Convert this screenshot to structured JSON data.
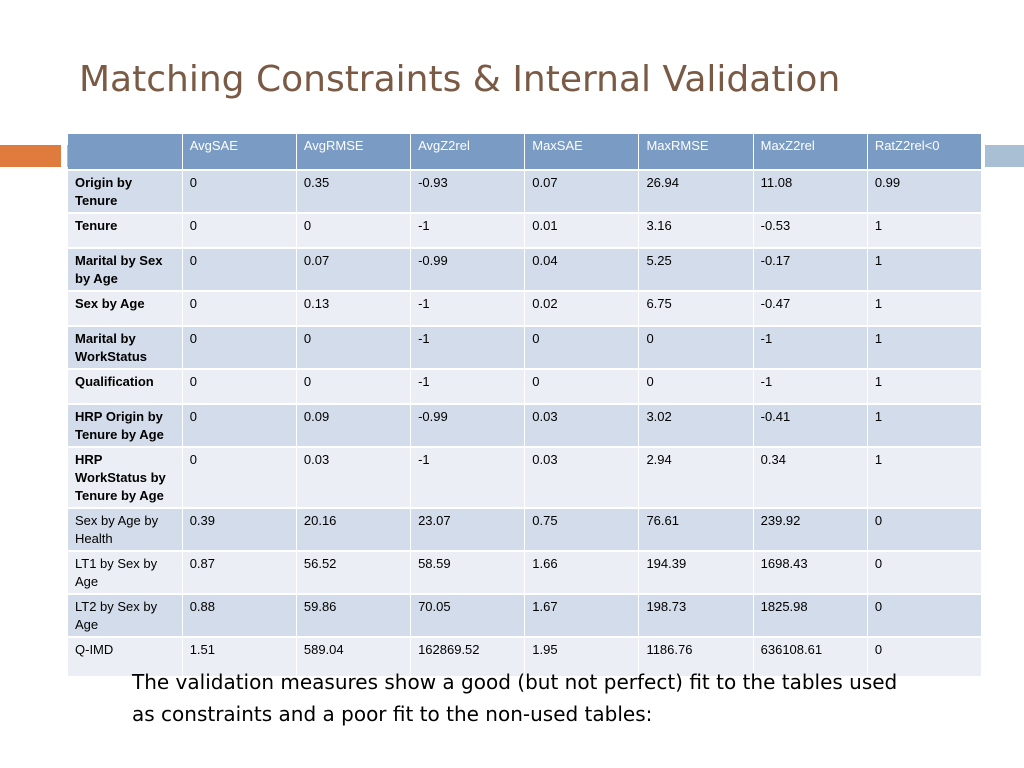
{
  "slide": {
    "title": "Matching Constraints & Internal Validation",
    "footnote": "The validation measures show a good (but not perfect) fit to the tables used as constraints and a poor fit to the non-used tables:"
  },
  "colors": {
    "title": "#7a5a44",
    "accent_orange": "#e07b3e",
    "accent_blue": "#a9bfd3",
    "header_bg": "#7a9bc4",
    "row_odd": "#d3dcea",
    "row_even": "#ebeff5"
  },
  "table": {
    "headers": [
      "",
      "AvgSAE",
      "AvgRMSE",
      "AvgZ2rel",
      "MaxSAE",
      "MaxRMSE",
      "MaxZ2rel",
      "RatZ2rel<0"
    ],
    "rows": [
      {
        "label": "Origin by Tenure",
        "bold": true,
        "cells": [
          "0",
          "0.35",
          "-0.93",
          "0.07",
          "26.94",
          "11.08",
          "0.99"
        ]
      },
      {
        "label": "Tenure",
        "bold": true,
        "cells": [
          "0",
          "0",
          "-1",
          "0.01",
          "3.16",
          "-0.53",
          "1"
        ]
      },
      {
        "label": "Marital by Sex by Age",
        "bold": true,
        "cells": [
          "0",
          "0.07",
          "-0.99",
          "0.04",
          "5.25",
          "-0.17",
          "1"
        ]
      },
      {
        "label": "Sex by Age",
        "bold": true,
        "cells": [
          "0",
          "0.13",
          "-1",
          "0.02",
          "6.75",
          "-0.47",
          "1"
        ]
      },
      {
        "label": "Marital by WorkStatus",
        "bold": true,
        "cells": [
          "0",
          "0",
          "-1",
          "0",
          "0",
          "-1",
          "1"
        ]
      },
      {
        "label": "Qualification",
        "bold": true,
        "cells": [
          "0",
          "0",
          "-1",
          "0",
          "0",
          "-1",
          "1"
        ]
      },
      {
        "label": "HRP Origin by Tenure by Age",
        "bold": true,
        "cells": [
          "0",
          "0.09",
          "-0.99",
          "0.03",
          "3.02",
          "-0.41",
          "1"
        ]
      },
      {
        "label": "HRP WorkStatus by Tenure by Age",
        "bold": true,
        "cells": [
          "0",
          "0.03",
          "-1",
          "0.03",
          "2.94",
          "0.34",
          "1"
        ]
      },
      {
        "label": "Sex by Age by Health",
        "bold": false,
        "cells": [
          "0.39",
          "20.16",
          "23.07",
          "0.75",
          "76.61",
          "239.92",
          "0"
        ]
      },
      {
        "label": "LT1 by Sex by Age",
        "bold": false,
        "cells": [
          "0.87",
          "56.52",
          "58.59",
          "1.66",
          "194.39",
          "1698.43",
          "0"
        ]
      },
      {
        "label": "LT2 by Sex by Age",
        "bold": false,
        "cells": [
          "0.88",
          "59.86",
          "70.05",
          "1.67",
          "198.73",
          "1825.98",
          "0"
        ]
      },
      {
        "label": "Q-IMD",
        "bold": false,
        "cells": [
          "1.51",
          "589.04",
          "162869.52",
          "1.95",
          "1186.76",
          "636108.61",
          "0"
        ]
      }
    ]
  }
}
